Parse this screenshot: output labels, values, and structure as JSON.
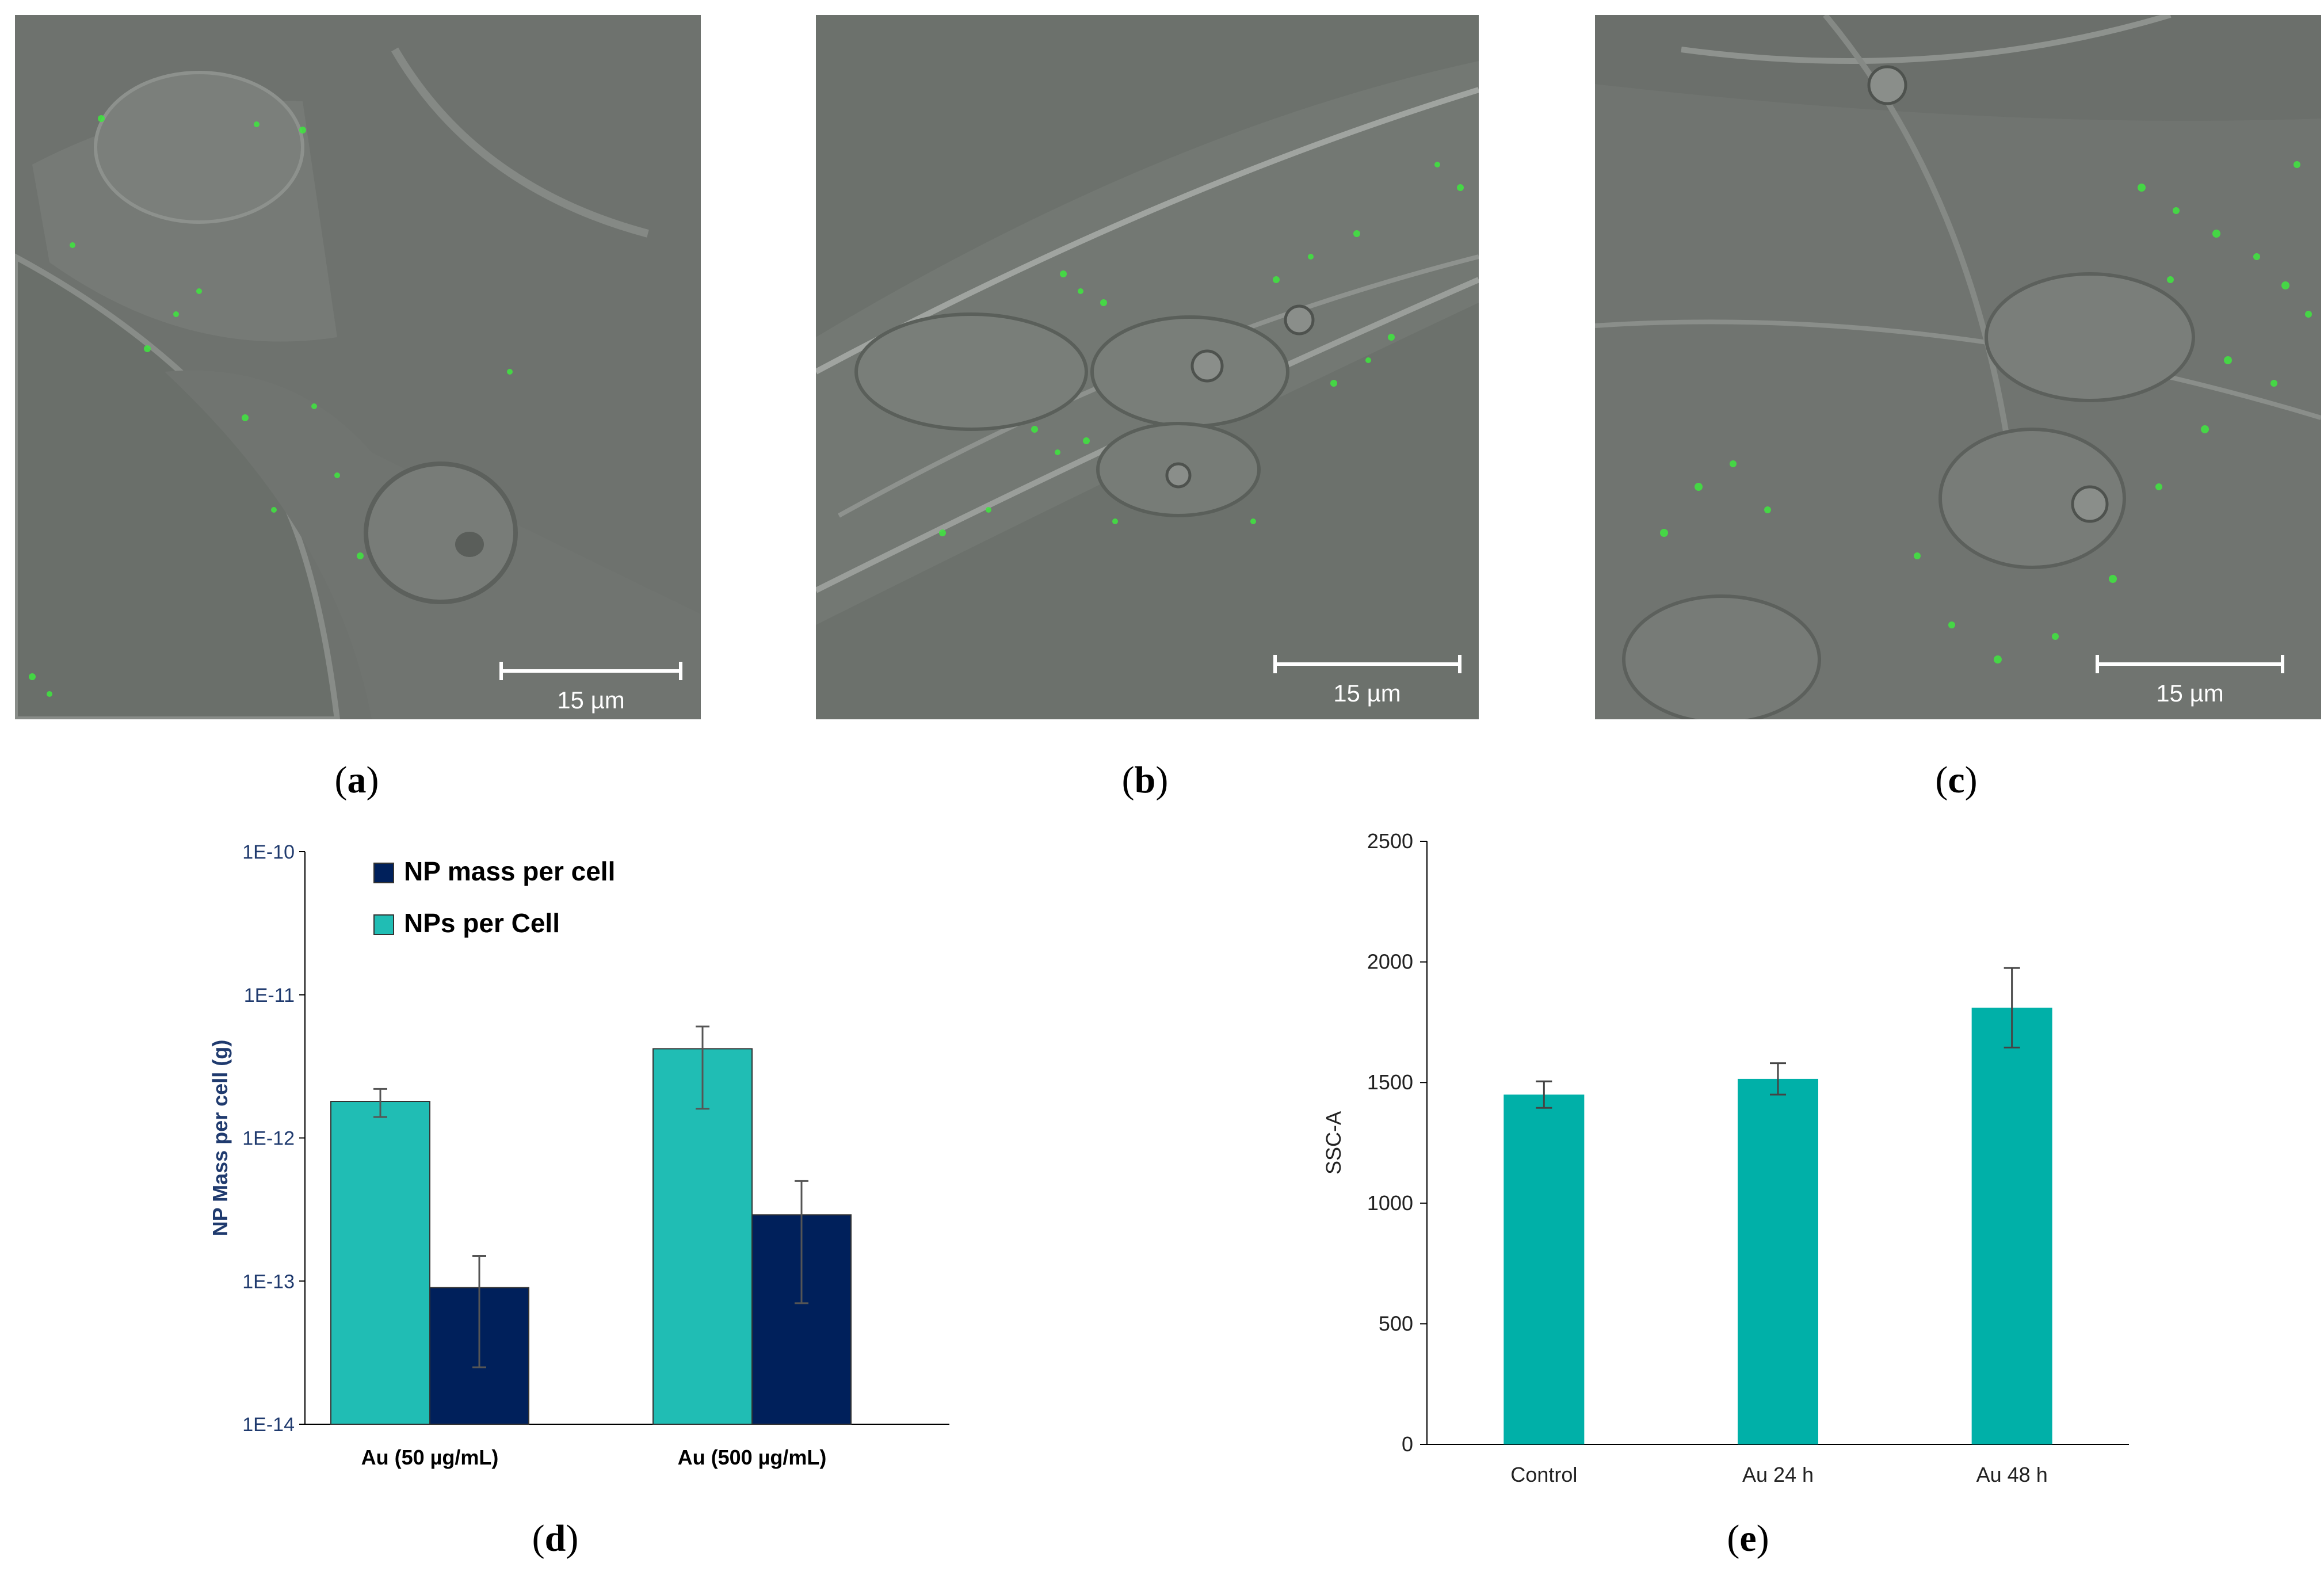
{
  "panels": {
    "a": {
      "caption_open": "(",
      "caption_letter": "a",
      "caption_close": ")",
      "scalebar": "15 µm"
    },
    "b": {
      "caption_open": "(",
      "caption_letter": "b",
      "caption_close": ")",
      "scalebar": "15 µm"
    },
    "c": {
      "caption_open": "(",
      "caption_letter": "c",
      "caption_close": ")",
      "scalebar": "15 µm"
    },
    "d": {
      "caption_open": "(",
      "caption_letter": "d",
      "caption_close": ")"
    },
    "e": {
      "caption_open": "(",
      "caption_letter": "e",
      "caption_close": ")"
    }
  },
  "colors": {
    "teal": "#20bdb4",
    "navy": "#00205b",
    "teal_e": "#00b0a8",
    "micro_bg": "#6c716c",
    "green_dots": "#3ee83e",
    "axis_text_d": "#1f3a6e"
  },
  "chart_data": [
    {
      "type": "bar",
      "panel": "d",
      "scale": "log",
      "categories": [
        "Au (50 µg/mL)",
        "Au (500 µg/mL)"
      ],
      "series": [
        {
          "name": "NPs per Cell",
          "values": [
            1.8e-12,
            4.2e-12
          ],
          "error_low": [
            1.4e-12,
            1.6e-12
          ],
          "error_high": [
            2.2e-12,
            6e-12
          ]
        },
        {
          "name": "NP mass per cell",
          "values": [
            9e-14,
            2.9e-13
          ],
          "error_low": [
            2.5e-14,
            7e-14
          ],
          "error_high": [
            1.5e-13,
            5e-13
          ]
        }
      ],
      "legend_order": [
        "NP mass per cell",
        "NPs per Cell"
      ],
      "ylabel": "NP Mass per cell (g)",
      "ylim": [
        1e-14,
        1e-10
      ],
      "yticks": [
        "1E-10",
        "1E-11",
        "1E-12",
        "1E-13",
        "1E-14"
      ],
      "legend_position": "top-left"
    },
    {
      "type": "bar",
      "panel": "e",
      "categories": [
        "Control",
        "Au 24 h",
        "Au 48 h"
      ],
      "series": [
        {
          "values": [
            1450,
            1515,
            1810
          ],
          "error": [
            55,
            65,
            165
          ]
        }
      ],
      "ylabel": "SSC-A",
      "ylim": [
        0,
        2500
      ],
      "yticks": [
        "0",
        "500",
        "1000",
        "1500",
        "2000",
        "2500"
      ]
    }
  ]
}
